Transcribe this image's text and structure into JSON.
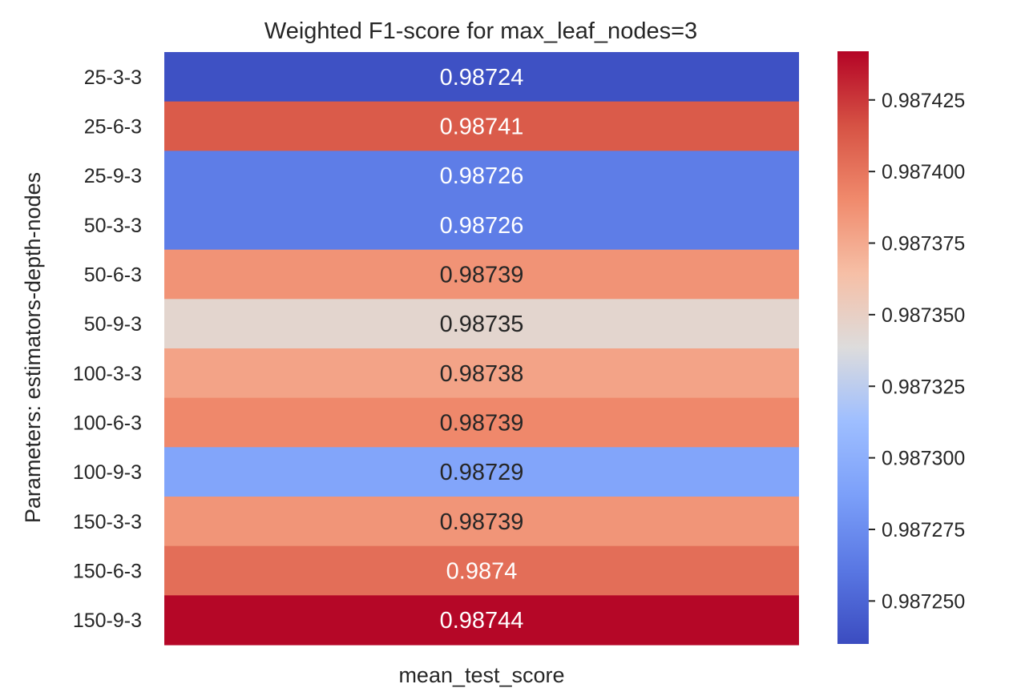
{
  "chart_data": {
    "type": "heatmap",
    "title": "Weighted F1-score for max_leaf_nodes=3",
    "xlabel": "mean_test_score",
    "ylabel": "Parameters: estimators-depth-nodes",
    "x_categories": [],
    "y_categories": [
      "25-3-3",
      "25-6-3",
      "25-9-3",
      "50-3-3",
      "50-6-3",
      "50-9-3",
      "100-3-3",
      "100-6-3",
      "100-9-3",
      "150-3-3",
      "150-6-3",
      "150-9-3"
    ],
    "annotations": [
      "0.98724",
      "0.98741",
      "0.98726",
      "0.98726",
      "0.98739",
      "0.98735",
      "0.98738",
      "0.98739",
      "0.98729",
      "0.98739",
      "0.9874",
      "0.98744"
    ],
    "values": [
      0.987238,
      0.987412,
      0.987265,
      0.987265,
      0.987386,
      0.987345,
      0.987378,
      0.987391,
      0.987292,
      0.987385,
      0.987403,
      0.987441
    ],
    "colormap": "coolwarm",
    "vmin": 0.987235,
    "vmax": 0.987442,
    "colorbar_ticks": [
      "0.987250",
      "0.987275",
      "0.987300",
      "0.987325",
      "0.987350",
      "0.987375",
      "0.987400",
      "0.987425"
    ],
    "colorbar_tick_values": [
      0.98725,
      0.987275,
      0.9873,
      0.987325,
      0.98735,
      0.987375,
      0.9874,
      0.987425
    ],
    "grid": false
  }
}
